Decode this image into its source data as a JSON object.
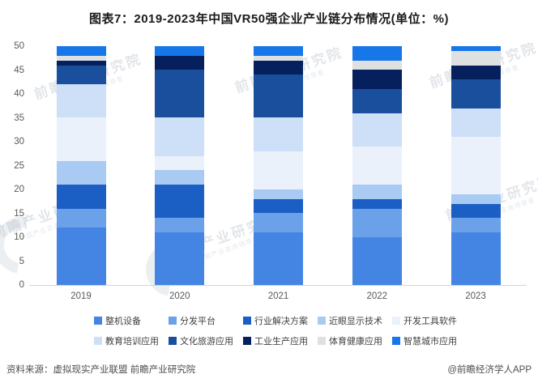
{
  "title": "图表7：2019-2023年中国VR50强企业产业链分布情况(单位：%)",
  "chart_data": {
    "type": "bar",
    "stacked": true,
    "title": "图表7：2019-2023年中国VR50强企业产业链分布情况(单位：%)",
    "unit": "%",
    "categories": [
      "2019",
      "2020",
      "2021",
      "2022",
      "2023"
    ],
    "series": [
      {
        "name": "整机设备",
        "color": "#4485E4",
        "values": [
          12,
          11,
          11,
          10,
          11
        ]
      },
      {
        "name": "分发平台",
        "color": "#6BA1E9",
        "values": [
          4,
          3,
          4,
          6,
          3
        ]
      },
      {
        "name": "行业解决方案",
        "color": "#1C5FC4",
        "values": [
          5,
          7,
          3,
          2,
          3
        ]
      },
      {
        "name": "近眼显示技术",
        "color": "#A9CAF2",
        "values": [
          5,
          3,
          2,
          3,
          2
        ]
      },
      {
        "name": "开发工具软件",
        "color": "#EAF1FB",
        "values": [
          9,
          3,
          8,
          8,
          12
        ]
      },
      {
        "name": "教育培训应用",
        "color": "#CDE0F8",
        "values": [
          7,
          8,
          7,
          7,
          6
        ]
      },
      {
        "name": "文化旅游应用",
        "color": "#1A4F9E",
        "values": [
          4,
          10,
          9,
          5,
          6
        ]
      },
      {
        "name": "工业生产应用",
        "color": "#06205E",
        "values": [
          1,
          3,
          3,
          4,
          3
        ]
      },
      {
        "name": "体育健康应用",
        "color": "#DFE0E2",
        "values": [
          1,
          0,
          1,
          2,
          3
        ]
      },
      {
        "name": "智慧城市应用",
        "color": "#1877E8",
        "values": [
          2,
          2,
          2,
          3,
          1
        ]
      }
    ],
    "ylim": [
      0,
      50
    ],
    "ytick_step": 5,
    "grid": false,
    "legend_position": "bottom",
    "legend_rows": 2
  },
  "watermark": {
    "text": "前瞻产业研究院",
    "subtext": "中国产业咨询领导者"
  },
  "footer": {
    "source": "资料来源：虚拟现实产业联盟 前瞻产业研究院",
    "credit": "@前瞻经济学人APP"
  }
}
